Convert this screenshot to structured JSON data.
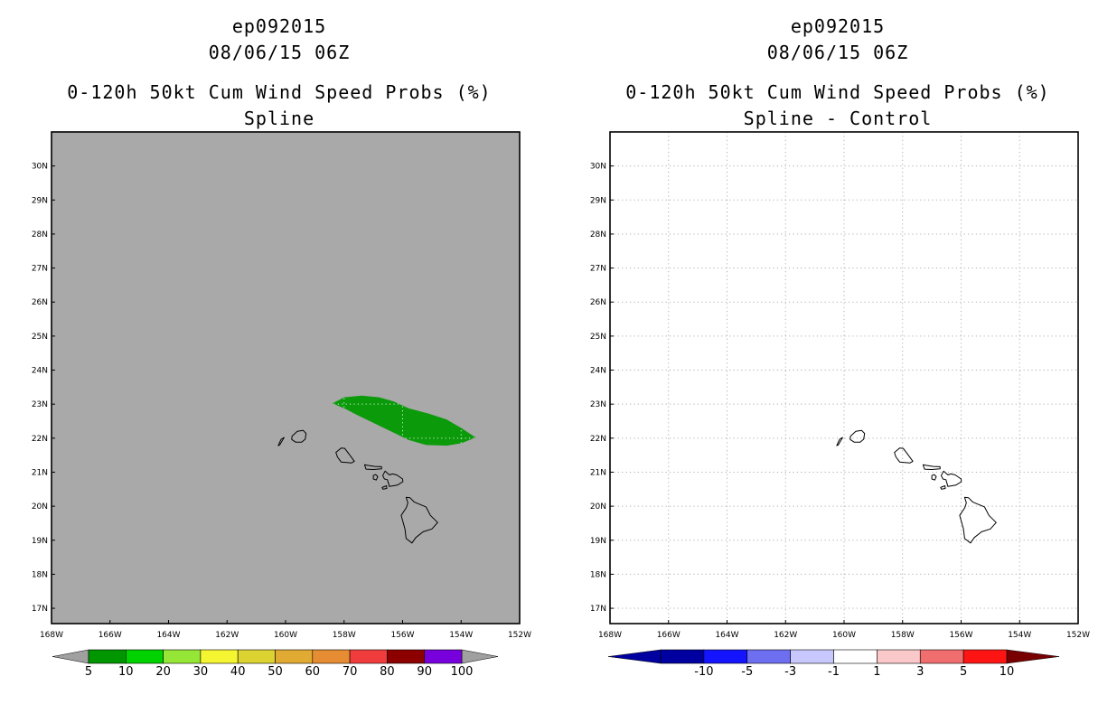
{
  "left_panel": {
    "storm_id": "ep092015",
    "datetime": "08/06/15 06Z",
    "product": "0-120h 50kt Cum Wind Speed Probs (%)",
    "method": "Spline",
    "colors": {
      "map_background": "#a9a9a9",
      "probability_fill": "#0a9a0a"
    },
    "colorbar": {
      "labels": [
        "5",
        "10",
        "20",
        "30",
        "40",
        "50",
        "60",
        "70",
        "80",
        "90",
        "100"
      ],
      "colors": [
        "#009600",
        "#00d200",
        "#96e637",
        "#f5f532",
        "#dcd232",
        "#e1aa32",
        "#e68c32",
        "#f03c3c",
        "#8c0000",
        "#7800dc"
      ],
      "end_color": "#a0a0a0"
    }
  },
  "right_panel": {
    "storm_id": "ep092015",
    "datetime": "08/06/15 06Z",
    "product": "0-120h 50kt Cum Wind Speed Probs (%)",
    "method": "Spline - Control",
    "colors": {
      "map_background": "#ffffff"
    },
    "colorbar": {
      "labels": [
        "-10",
        "-5",
        "-3",
        "-1",
        "1",
        "3",
        "5",
        "10"
      ],
      "colors": [
        "#0000a0",
        "#1414ff",
        "#6e6ef0",
        "#c8c8ff",
        "#ffffff",
        "#fac8c8",
        "#f06e6e",
        "#ff1414"
      ],
      "end_color": "#780000"
    }
  },
  "axes": {
    "lat_labels": [
      "17N",
      "18N",
      "19N",
      "20N",
      "21N",
      "22N",
      "23N",
      "24N",
      "25N",
      "26N",
      "27N",
      "28N",
      "29N",
      "30N"
    ],
    "lat_values": [
      17,
      18,
      19,
      20,
      21,
      22,
      23,
      24,
      25,
      26,
      27,
      28,
      29,
      30
    ],
    "lon_labels": [
      "168W",
      "166W",
      "164W",
      "162W",
      "160W",
      "158W",
      "156W",
      "154W",
      "152W"
    ],
    "lon_values": [
      -168,
      -166,
      -164,
      -162,
      -160,
      -158,
      -156,
      -154,
      -152
    ],
    "lat_range": [
      16.55,
      31.0
    ],
    "lon_range": [
      -168,
      -152
    ]
  },
  "probability_region": {
    "lonlat": [
      [
        -158.4,
        23.02
      ],
      [
        -158.0,
        23.2
      ],
      [
        -157.4,
        23.25
      ],
      [
        -156.8,
        23.2
      ],
      [
        -156.3,
        23.08
      ],
      [
        -155.8,
        22.88
      ],
      [
        -155.1,
        22.72
      ],
      [
        -154.5,
        22.55
      ],
      [
        -154.0,
        22.3
      ],
      [
        -153.5,
        22.02
      ],
      [
        -154.0,
        21.85
      ],
      [
        -154.5,
        21.78
      ],
      [
        -155.2,
        21.8
      ],
      [
        -155.8,
        21.95
      ],
      [
        -156.4,
        22.2
      ],
      [
        -157.0,
        22.45
      ],
      [
        -157.6,
        22.7
      ],
      [
        -158.0,
        22.88
      ]
    ]
  },
  "islands": [
    {
      "name": "Niihau",
      "lonlat": [
        [
          -160.05,
          22.02
        ],
        [
          -160.1,
          21.95
        ],
        [
          -160.2,
          21.8
        ],
        [
          -160.25,
          21.78
        ],
        [
          -160.2,
          21.88
        ],
        [
          -160.15,
          21.97
        ]
      ]
    },
    {
      "name": "Kauai",
      "lonlat": [
        [
          -159.78,
          22.06
        ],
        [
          -159.6,
          22.2
        ],
        [
          -159.4,
          22.23
        ],
        [
          -159.3,
          22.14
        ],
        [
          -159.33,
          21.97
        ],
        [
          -159.45,
          21.88
        ],
        [
          -159.65,
          21.88
        ],
        [
          -159.79,
          21.96
        ]
      ]
    },
    {
      "name": "Oahu",
      "lonlat": [
        [
          -158.28,
          21.58
        ],
        [
          -158.1,
          21.71
        ],
        [
          -157.98,
          21.7
        ],
        [
          -157.82,
          21.52
        ],
        [
          -157.65,
          21.32
        ],
        [
          -157.75,
          21.27
        ],
        [
          -158.1,
          21.3
        ],
        [
          -158.23,
          21.45
        ]
      ]
    },
    {
      "name": "Molokai",
      "lonlat": [
        [
          -157.3,
          21.22
        ],
        [
          -157.2,
          21.2
        ],
        [
          -156.95,
          21.17
        ],
        [
          -156.72,
          21.16
        ],
        [
          -156.72,
          21.1
        ],
        [
          -157.0,
          21.08
        ],
        [
          -157.25,
          21.09
        ]
      ]
    },
    {
      "name": "Lanai",
      "lonlat": [
        [
          -157.0,
          20.9
        ],
        [
          -156.92,
          20.93
        ],
        [
          -156.85,
          20.87
        ],
        [
          -156.9,
          20.77
        ],
        [
          -157.0,
          20.8
        ]
      ]
    },
    {
      "name": "Maui",
      "lonlat": [
        [
          -156.68,
          20.9
        ],
        [
          -156.6,
          21.03
        ],
        [
          -156.45,
          20.92
        ],
        [
          -156.35,
          20.95
        ],
        [
          -156.2,
          20.92
        ],
        [
          -156.0,
          20.8
        ],
        [
          -155.99,
          20.72
        ],
        [
          -156.18,
          20.62
        ],
        [
          -156.45,
          20.58
        ],
        [
          -156.52,
          20.78
        ],
        [
          -156.62,
          20.8
        ]
      ]
    },
    {
      "name": "Kahoolawe",
      "lonlat": [
        [
          -156.7,
          20.55
        ],
        [
          -156.55,
          20.6
        ],
        [
          -156.54,
          20.52
        ],
        [
          -156.67,
          20.5
        ]
      ]
    },
    {
      "name": "Hawaii",
      "lonlat": [
        [
          -155.88,
          20.26
        ],
        [
          -155.75,
          20.25
        ],
        [
          -155.6,
          20.12
        ],
        [
          -155.2,
          19.98
        ],
        [
          -155.05,
          19.73
        ],
        [
          -154.8,
          19.52
        ],
        [
          -155.0,
          19.33
        ],
        [
          -155.3,
          19.25
        ],
        [
          -155.55,
          19.08
        ],
        [
          -155.68,
          18.92
        ],
        [
          -155.88,
          19.05
        ],
        [
          -155.92,
          19.33
        ],
        [
          -156.05,
          19.73
        ],
        [
          -155.87,
          19.96
        ],
        [
          -155.82,
          20.1
        ]
      ]
    }
  ]
}
